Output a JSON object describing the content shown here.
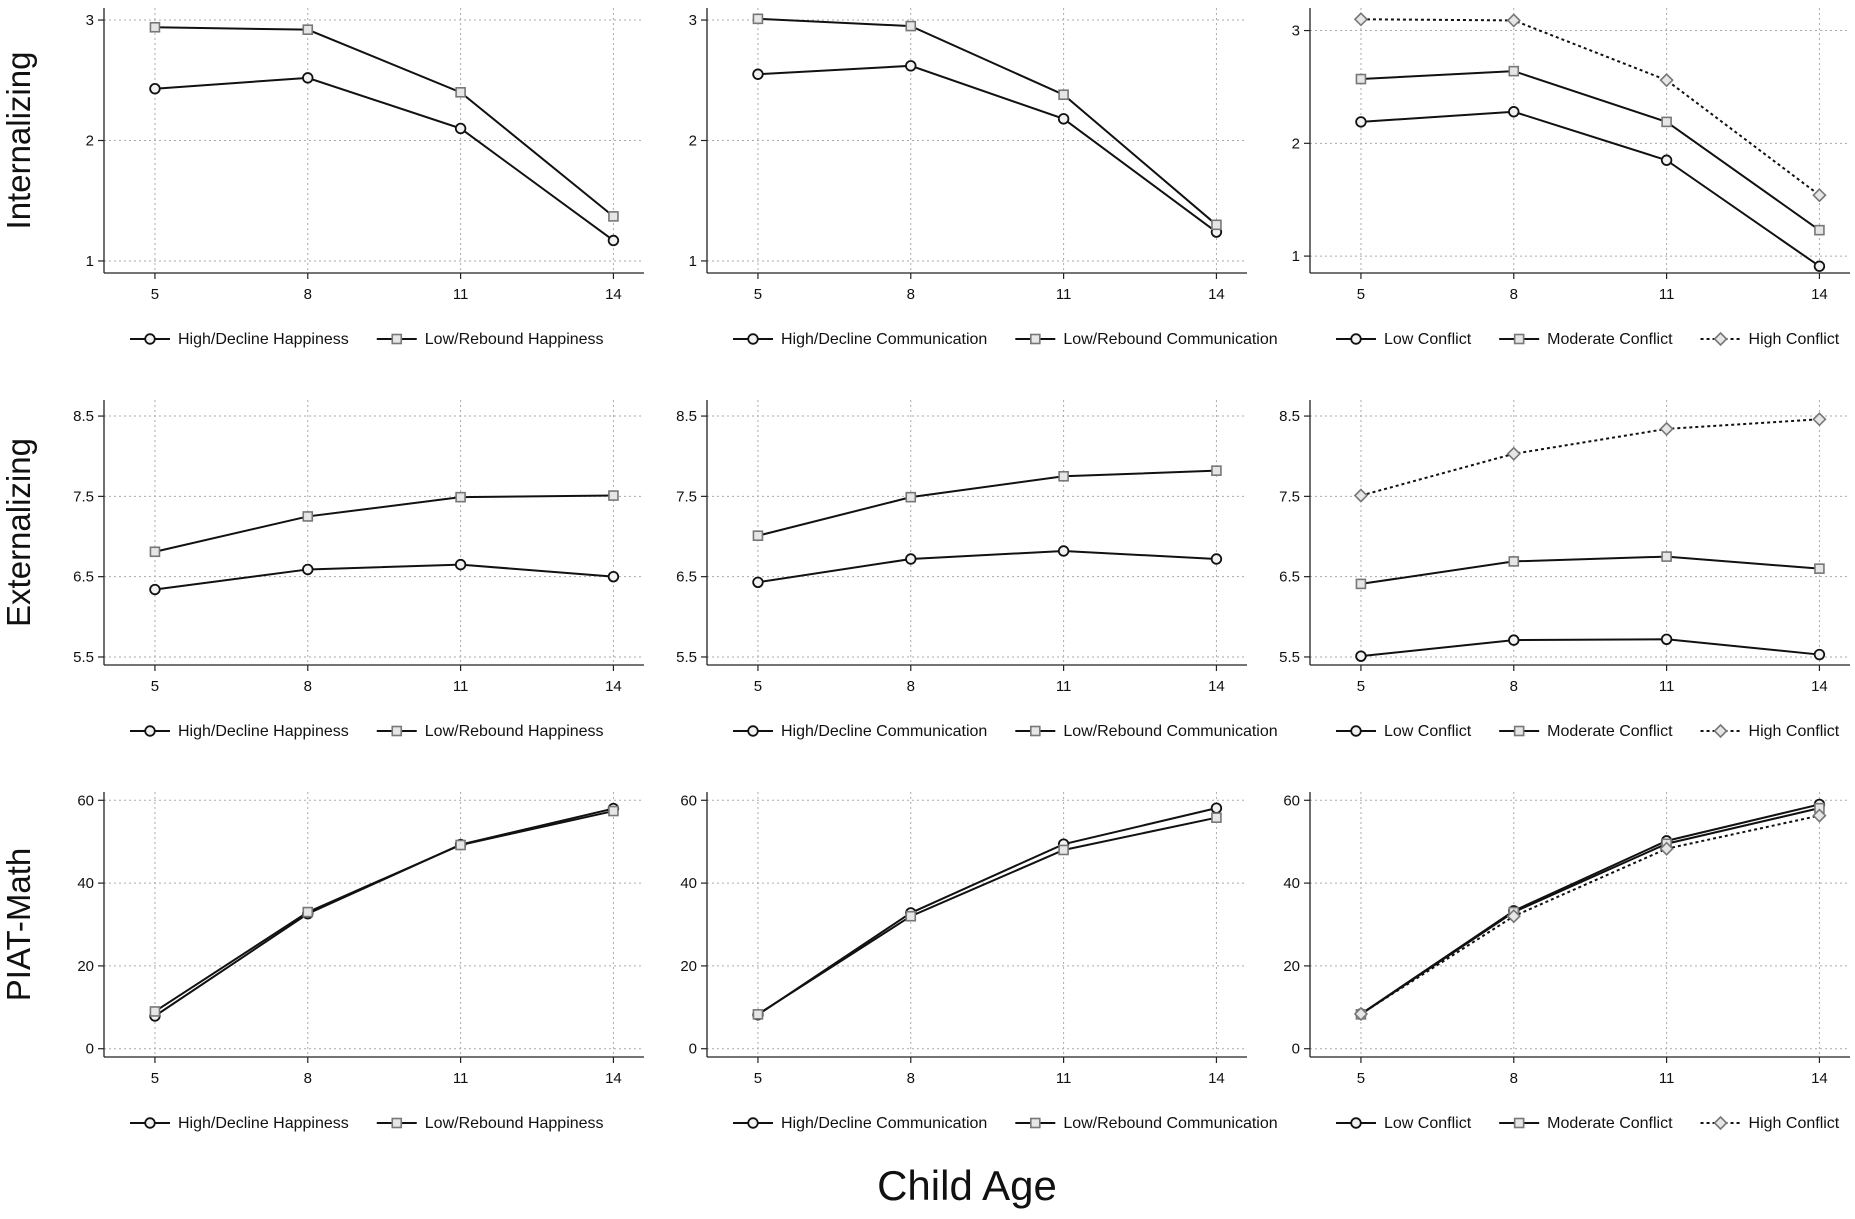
{
  "chart_data": [
    {
      "type": "line",
      "ylabel": "Internalizing",
      "x": [
        5,
        8,
        11,
        14
      ],
      "xlim": [
        4,
        14.6
      ],
      "xticks": [
        5,
        8,
        11,
        14
      ],
      "ylim": [
        0.9,
        3.1
      ],
      "yticks": [
        1,
        2,
        3
      ],
      "grid": true,
      "series": [
        {
          "name": "High/Decline Happiness",
          "color": "#111111",
          "marker": "circle",
          "line_style": "solid",
          "values": [
            2.43,
            2.52,
            2.1,
            1.17
          ]
        },
        {
          "name": "Low/Rebound Happiness",
          "color": "#111111",
          "marker": "square",
          "line_style": "solid",
          "values": [
            2.94,
            2.92,
            2.4,
            1.37
          ]
        }
      ]
    },
    {
      "type": "line",
      "x": [
        5,
        8,
        11,
        14
      ],
      "xlim": [
        4,
        14.6
      ],
      "xticks": [
        5,
        8,
        11,
        14
      ],
      "ylim": [
        0.9,
        3.1
      ],
      "yticks": [
        1,
        2,
        3
      ],
      "grid": true,
      "series": [
        {
          "name": "High/Decline Communication",
          "color": "#111111",
          "marker": "circle",
          "line_style": "solid",
          "values": [
            2.55,
            2.62,
            2.18,
            1.24
          ]
        },
        {
          "name": "Low/Rebound Communication",
          "color": "#111111",
          "marker": "square",
          "line_style": "solid",
          "values": [
            3.01,
            2.95,
            2.38,
            1.3
          ]
        }
      ]
    },
    {
      "type": "line",
      "x": [
        5,
        8,
        11,
        14
      ],
      "xlim": [
        4,
        14.6
      ],
      "xticks": [
        5,
        8,
        11,
        14
      ],
      "ylim": [
        0.85,
        3.2
      ],
      "yticks": [
        1,
        2,
        3
      ],
      "grid": true,
      "series": [
        {
          "name": "Low Conflict",
          "color": "#111111",
          "marker": "circle",
          "line_style": "solid",
          "values": [
            2.19,
            2.28,
            1.85,
            0.91
          ]
        },
        {
          "name": "Moderate Conflict",
          "color": "#111111",
          "marker": "square",
          "line_style": "solid",
          "values": [
            2.57,
            2.64,
            2.19,
            1.23
          ]
        },
        {
          "name": "High Conflict",
          "color": "#111111",
          "marker": "diamond",
          "line_style": "dotted",
          "values": [
            3.1,
            3.09,
            2.56,
            1.54
          ]
        }
      ]
    },
    {
      "type": "line",
      "ylabel": "Externalizing",
      "x": [
        5,
        8,
        11,
        14
      ],
      "xlim": [
        4,
        14.6
      ],
      "xticks": [
        5,
        8,
        11,
        14
      ],
      "ylim": [
        5.4,
        8.7
      ],
      "yticks": [
        5.5,
        6.5,
        7.5,
        8.5
      ],
      "grid": true,
      "series": [
        {
          "name": "High/Decline Happiness",
          "color": "#111111",
          "marker": "circle",
          "line_style": "solid",
          "values": [
            6.34,
            6.59,
            6.65,
            6.5
          ]
        },
        {
          "name": "Low/Rebound Happiness",
          "color": "#111111",
          "marker": "square",
          "line_style": "solid",
          "values": [
            6.81,
            7.25,
            7.49,
            7.51
          ]
        }
      ]
    },
    {
      "type": "line",
      "x": [
        5,
        8,
        11,
        14
      ],
      "xlim": [
        4,
        14.6
      ],
      "xticks": [
        5,
        8,
        11,
        14
      ],
      "ylim": [
        5.4,
        8.7
      ],
      "yticks": [
        5.5,
        6.5,
        7.5,
        8.5
      ],
      "grid": true,
      "series": [
        {
          "name": "High/Decline Communication",
          "color": "#111111",
          "marker": "circle",
          "line_style": "solid",
          "values": [
            6.43,
            6.72,
            6.82,
            6.72
          ]
        },
        {
          "name": "Low/Rebound Communication",
          "color": "#111111",
          "marker": "square",
          "line_style": "solid",
          "values": [
            7.01,
            7.49,
            7.75,
            7.82
          ]
        }
      ]
    },
    {
      "type": "line",
      "x": [
        5,
        8,
        11,
        14
      ],
      "xlim": [
        4,
        14.6
      ],
      "xticks": [
        5,
        8,
        11,
        14
      ],
      "ylim": [
        5.4,
        8.7
      ],
      "yticks": [
        5.5,
        6.5,
        7.5,
        8.5
      ],
      "grid": true,
      "series": [
        {
          "name": "Low Conflict",
          "color": "#111111",
          "marker": "circle",
          "line_style": "solid",
          "values": [
            5.51,
            5.71,
            5.72,
            5.53
          ]
        },
        {
          "name": "Moderate Conflict",
          "color": "#111111",
          "marker": "square",
          "line_style": "solid",
          "values": [
            6.41,
            6.69,
            6.75,
            6.6
          ]
        },
        {
          "name": "High Conflict",
          "color": "#111111",
          "marker": "diamond",
          "line_style": "dotted",
          "values": [
            7.51,
            8.03,
            8.34,
            8.46
          ]
        }
      ]
    },
    {
      "type": "line",
      "ylabel": "PIAT-Math",
      "x": [
        5,
        8,
        11,
        14
      ],
      "xlim": [
        4,
        14.6
      ],
      "xticks": [
        5,
        8,
        11,
        14
      ],
      "ylim": [
        -2,
        62
      ],
      "yticks": [
        0,
        20,
        40,
        60
      ],
      "grid": true,
      "series": [
        {
          "name": "High/Decline Happiness",
          "color": "#111111",
          "marker": "circle",
          "line_style": "solid",
          "values": [
            7.9,
            32.6,
            49.3,
            58.0
          ]
        },
        {
          "name": "Low/Rebound Happiness",
          "color": "#111111",
          "marker": "square",
          "line_style": "solid",
          "values": [
            9.0,
            33.0,
            49.2,
            57.4
          ]
        }
      ]
    },
    {
      "type": "line",
      "xlabel": "Child Age",
      "x": [
        5,
        8,
        11,
        14
      ],
      "xlim": [
        4,
        14.6
      ],
      "xticks": [
        5,
        8,
        11,
        14
      ],
      "ylim": [
        -2,
        62
      ],
      "yticks": [
        0,
        20,
        40,
        60
      ],
      "grid": true,
      "series": [
        {
          "name": "High/Decline Communication",
          "color": "#111111",
          "marker": "circle",
          "line_style": "solid",
          "values": [
            8.2,
            32.8,
            49.4,
            58.1
          ]
        },
        {
          "name": "Low/Rebound Communication",
          "color": "#111111",
          "marker": "square",
          "line_style": "solid",
          "values": [
            8.3,
            32.0,
            48.0,
            55.8
          ]
        }
      ]
    },
    {
      "type": "line",
      "x": [
        5,
        8,
        11,
        14
      ],
      "xlim": [
        4,
        14.6
      ],
      "xticks": [
        5,
        8,
        11,
        14
      ],
      "ylim": [
        -2,
        62
      ],
      "yticks": [
        0,
        20,
        40,
        60
      ],
      "grid": true,
      "series": [
        {
          "name": "Low Conflict",
          "color": "#111111",
          "marker": "circle",
          "line_style": "solid",
          "values": [
            8.4,
            33.3,
            50.2,
            59.0
          ]
        },
        {
          "name": "Moderate Conflict",
          "color": "#111111",
          "marker": "square",
          "line_style": "solid",
          "values": [
            8.3,
            33.0,
            49.5,
            58.1
          ]
        },
        {
          "name": "High Conflict",
          "color": "#111111",
          "marker": "diamond",
          "line_style": "dotted",
          "values": [
            8.4,
            32.0,
            48.3,
            56.3
          ]
        }
      ]
    }
  ]
}
